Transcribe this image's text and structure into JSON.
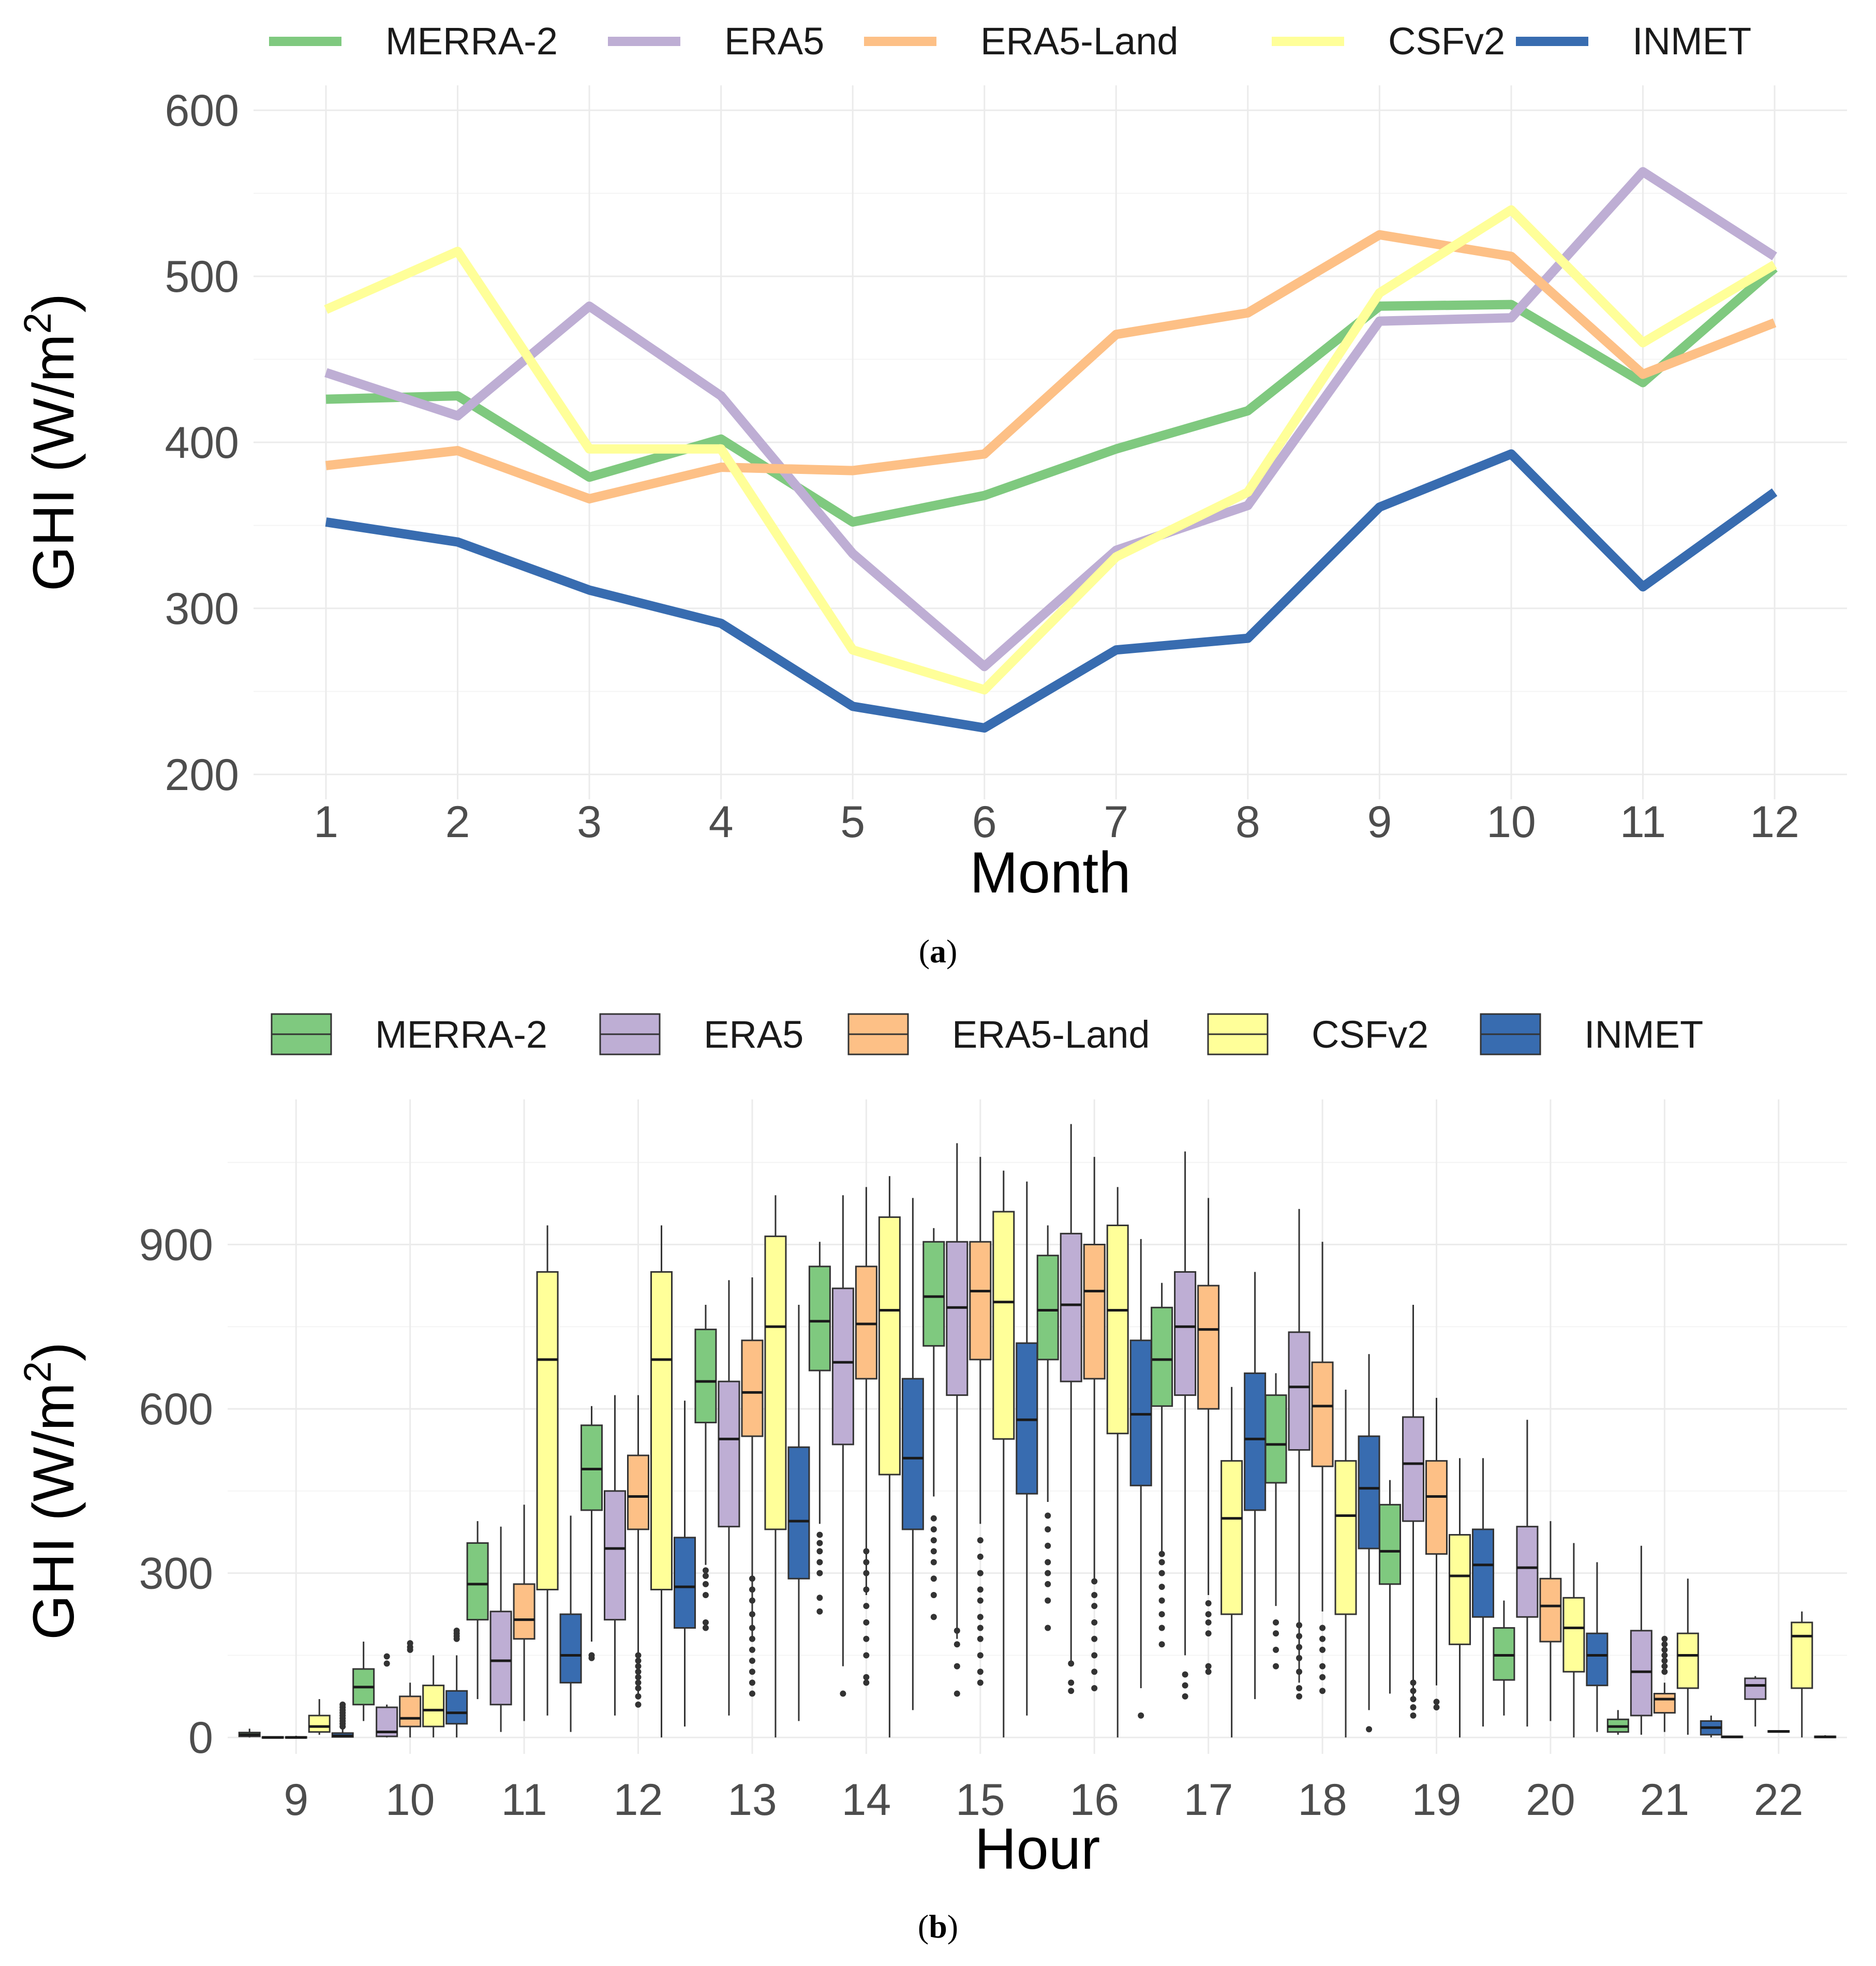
{
  "chart_data": [
    {
      "type": "line",
      "panel": "a",
      "caption_letter": "a",
      "xlabel": "Month",
      "ylabel": "GHI (W/m",
      "ylabel_sup": "2",
      "ylabel_close": ")",
      "x": [
        1,
        2,
        3,
        4,
        5,
        6,
        7,
        8,
        9,
        10,
        11,
        12
      ],
      "xticks": [
        "1",
        "2",
        "3",
        "4",
        "5",
        "6",
        "7",
        "8",
        "9",
        "10",
        "11",
        "12"
      ],
      "ylim": [
        185,
        615
      ],
      "yticks": [
        200,
        300,
        400,
        500,
        600
      ],
      "grid": true,
      "legend_position": "top",
      "series": [
        {
          "name": "MERRA-2",
          "color": "#7fc97f",
          "values": [
            426,
            428,
            379,
            402,
            352,
            368,
            396,
            419,
            482,
            483,
            436,
            505
          ]
        },
        {
          "name": "ERA5",
          "color": "#beaed4",
          "values": [
            442,
            416,
            482,
            428,
            333,
            265,
            335,
            362,
            473,
            475,
            563,
            512
          ]
        },
        {
          "name": "ERA5-Land",
          "color": "#fdc086",
          "values": [
            386,
            395,
            366,
            385,
            383,
            393,
            465,
            478,
            525,
            512,
            441,
            472
          ]
        },
        {
          "name": "CSFv2",
          "color": "#ffff99",
          "values": [
            480,
            515,
            396,
            396,
            275,
            251,
            331,
            370,
            490,
            540,
            460,
            507
          ]
        },
        {
          "name": "INMET",
          "color": "#386cb0",
          "values": [
            352,
            340,
            311,
            291,
            241,
            228,
            275,
            282,
            361,
            393,
            313,
            370
          ]
        }
      ]
    },
    {
      "type": "box",
      "panel": "b",
      "caption_letter": "b",
      "xlabel": "Hour",
      "ylabel": "GHI (W/m",
      "ylabel_sup": "2",
      "ylabel_close": ")",
      "categories": [
        "9",
        "10",
        "11",
        "12",
        "13",
        "14",
        "15",
        "16",
        "17",
        "18",
        "19",
        "20",
        "21",
        "22"
      ],
      "ylim": [
        -30,
        1165
      ],
      "yticks": [
        0,
        300,
        600,
        900
      ],
      "grid": true,
      "legend_position": "top",
      "series": [
        {
          "name": "MERRA-2",
          "color": "#7fc97f",
          "boxes": [
            {
              "lo": 0,
              "q1": 2,
              "med": 5,
              "q3": 9,
              "hi": 16,
              "out": []
            },
            {
              "lo": 30,
              "q1": 60,
              "med": 92,
              "q3": 125,
              "hi": 175,
              "out": []
            },
            {
              "lo": 70,
              "q1": 215,
              "med": 280,
              "q3": 355,
              "hi": 395,
              "out": []
            },
            {
              "lo": 175,
              "q1": 415,
              "med": 490,
              "q3": 570,
              "hi": 605,
              "out": [
                145,
                150
              ]
            },
            {
              "lo": 315,
              "q1": 575,
              "med": 650,
              "q3": 745,
              "hi": 790,
              "out": [
                200,
                210,
                260,
                280,
                295,
                305
              ]
            },
            {
              "lo": 390,
              "q1": 670,
              "med": 760,
              "q3": 860,
              "hi": 905,
              "out": [
                230,
                255,
                300,
                320,
                340,
                355,
                370
              ]
            },
            {
              "lo": 440,
              "q1": 715,
              "med": 805,
              "q3": 905,
              "hi": 930,
              "out": [
                220,
                260,
                290,
                320,
                340,
                360,
                380,
                400
              ]
            },
            {
              "lo": 430,
              "q1": 690,
              "med": 780,
              "q3": 880,
              "hi": 935,
              "out": [
                200,
                250,
                280,
                300,
                320,
                350,
                380,
                405
              ]
            },
            {
              "lo": 340,
              "q1": 605,
              "med": 690,
              "q3": 785,
              "hi": 830,
              "out": [
                170,
                200,
                225,
                250,
                275,
                300,
                320,
                335
              ]
            },
            {
              "lo": 240,
              "q1": 465,
              "med": 535,
              "q3": 625,
              "hi": 665,
              "out": [
                130,
                160,
                190,
                210
              ]
            },
            {
              "lo": 80,
              "q1": 280,
              "med": 340,
              "q3": 425,
              "hi": 470,
              "out": []
            },
            {
              "lo": 40,
              "q1": 105,
              "med": 150,
              "q3": 200,
              "hi": 250,
              "out": []
            },
            {
              "lo": 5,
              "q1": 10,
              "med": 20,
              "q3": 33,
              "hi": 50,
              "out": []
            },
            {
              "lo": 0,
              "q1": 0,
              "med": 1,
              "q3": 2,
              "hi": 3,
              "out": []
            }
          ]
        },
        {
          "name": "ERA5",
          "color": "#beaed4",
          "boxes": [
            {
              "lo": 0,
              "q1": 0,
              "med": 0,
              "q3": 1,
              "hi": 2,
              "out": []
            },
            {
              "lo": 0,
              "q1": 2,
              "med": 10,
              "q3": 55,
              "hi": 60,
              "out": [
                135,
                148
              ]
            },
            {
              "lo": 10,
              "q1": 60,
              "med": 140,
              "q3": 230,
              "hi": 385,
              "out": []
            },
            {
              "lo": 40,
              "q1": 215,
              "med": 345,
              "q3": 450,
              "hi": 625,
              "out": []
            },
            {
              "lo": 40,
              "q1": 385,
              "med": 545,
              "q3": 650,
              "hi": 835,
              "out": []
            },
            {
              "lo": 130,
              "q1": 535,
              "med": 685,
              "q3": 820,
              "hi": 990,
              "out": [
                80
              ]
            },
            {
              "lo": 180,
              "q1": 625,
              "med": 785,
              "q3": 905,
              "hi": 1085,
              "out": [
                80,
                130,
                170,
                195
              ]
            },
            {
              "lo": 140,
              "q1": 650,
              "med": 790,
              "q3": 920,
              "hi": 1120,
              "out": [
                85,
                100,
                135
              ]
            },
            {
              "lo": 150,
              "q1": 625,
              "med": 750,
              "q3": 850,
              "hi": 1070,
              "out": [
                75,
                95,
                115
              ]
            },
            {
              "lo": 100,
              "q1": 525,
              "med": 640,
              "q3": 740,
              "hi": 965,
              "out": [
                75,
                90,
                120,
                145,
                165,
                185,
                205
              ]
            },
            {
              "lo": 70,
              "q1": 395,
              "med": 500,
              "q3": 585,
              "hi": 790,
              "out": [
                40,
                55,
                70,
                85,
                100
              ]
            },
            {
              "lo": 20,
              "q1": 220,
              "med": 310,
              "q3": 385,
              "hi": 580,
              "out": []
            },
            {
              "lo": 5,
              "q1": 40,
              "med": 120,
              "q3": 195,
              "hi": 350,
              "out": []
            },
            {
              "lo": 20,
              "q1": 70,
              "med": 95,
              "q3": 108,
              "hi": 112,
              "out": []
            }
          ]
        },
        {
          "name": "ERA5-Land",
          "color": "#fdc086",
          "boxes": [
            {
              "lo": 0,
              "q1": 0,
              "med": 0,
              "q3": 1,
              "hi": 3,
              "out": []
            },
            {
              "lo": 0,
              "q1": 20,
              "med": 35,
              "q3": 75,
              "hi": 100,
              "out": [
                160,
                165,
                172
              ]
            },
            {
              "lo": 30,
              "q1": 180,
              "med": 215,
              "q3": 280,
              "hi": 425,
              "out": []
            },
            {
              "lo": 80,
              "q1": 380,
              "med": 440,
              "q3": 515,
              "hi": 625,
              "out": [
                60,
                75,
                90,
                100,
                110,
                120,
                130,
                140,
                150
              ]
            },
            {
              "lo": 180,
              "q1": 550,
              "med": 630,
              "q3": 725,
              "hi": 840,
              "out": [
                80,
                100,
                120,
                140,
                160,
                180,
                200,
                225,
                250,
                270,
                290
              ]
            },
            {
              "lo": 260,
              "q1": 655,
              "med": 755,
              "q3": 860,
              "hi": 1005,
              "out": [
                100,
                110,
                150,
                180,
                210,
                240,
                270,
                300,
                320,
                340
              ]
            },
            {
              "lo": 390,
              "q1": 690,
              "med": 815,
              "q3": 905,
              "hi": 1060,
              "out": [
                100,
                120,
                150,
                180,
                200,
                220,
                250,
                270,
                300,
                330,
                360
              ]
            },
            {
              "lo": 290,
              "q1": 655,
              "med": 815,
              "q3": 900,
              "hi": 1060,
              "out": [
                90,
                120,
                150,
                180,
                210,
                240,
                260,
                285
              ]
            },
            {
              "lo": 260,
              "q1": 600,
              "med": 745,
              "q3": 825,
              "hi": 985,
              "out": [
                120,
                130,
                190,
                210,
                225,
                245
              ]
            },
            {
              "lo": 230,
              "q1": 495,
              "med": 605,
              "q3": 685,
              "hi": 905,
              "out": [
                85,
                110,
                130,
                160,
                180,
                200
              ]
            },
            {
              "lo": 95,
              "q1": 335,
              "med": 440,
              "q3": 505,
              "hi": 620,
              "out": [
                55,
                65
              ]
            },
            {
              "lo": 30,
              "q1": 175,
              "med": 240,
              "q3": 290,
              "hi": 395,
              "out": []
            },
            {
              "lo": 10,
              "q1": 45,
              "med": 70,
              "q3": 80,
              "hi": 100,
              "out": [
                120,
                130,
                140,
                150,
                160,
                170,
                180
              ]
            },
            {
              "lo": 10,
              "q1": 10,
              "med": 11,
              "q3": 12,
              "hi": 12,
              "out": []
            }
          ]
        },
        {
          "name": "CSFv2",
          "color": "#ffff99",
          "boxes": [
            {
              "lo": 5,
              "q1": 10,
              "med": 20,
              "q3": 40,
              "hi": 70,
              "out": []
            },
            {
              "lo": 0,
              "q1": 20,
              "med": 50,
              "q3": 95,
              "hi": 150,
              "out": []
            },
            {
              "lo": 40,
              "q1": 270,
              "med": 690,
              "q3": 850,
              "hi": 935,
              "out": []
            },
            {
              "lo": 0,
              "q1": 270,
              "med": 690,
              "q3": 850,
              "hi": 935,
              "out": []
            },
            {
              "lo": 0,
              "q1": 380,
              "med": 750,
              "q3": 915,
              "hi": 990,
              "out": []
            },
            {
              "lo": 0,
              "q1": 480,
              "med": 780,
              "q3": 950,
              "hi": 1025,
              "out": []
            },
            {
              "lo": 0,
              "q1": 545,
              "med": 795,
              "q3": 960,
              "hi": 1035,
              "out": []
            },
            {
              "lo": 0,
              "q1": 555,
              "med": 780,
              "q3": 935,
              "hi": 1005,
              "out": []
            },
            {
              "lo": 0,
              "q1": 225,
              "med": 400,
              "q3": 505,
              "hi": 640,
              "out": []
            },
            {
              "lo": 0,
              "q1": 225,
              "med": 405,
              "q3": 505,
              "hi": 635,
              "out": []
            },
            {
              "lo": 0,
              "q1": 170,
              "med": 295,
              "q3": 370,
              "hi": 510,
              "out": []
            },
            {
              "lo": 0,
              "q1": 120,
              "med": 200,
              "q3": 255,
              "hi": 355,
              "out": []
            },
            {
              "lo": 5,
              "q1": 90,
              "med": 150,
              "q3": 190,
              "hi": 290,
              "out": []
            },
            {
              "lo": 0,
              "q1": 90,
              "med": 185,
              "q3": 210,
              "hi": 230,
              "out": []
            }
          ]
        },
        {
          "name": "INMET",
          "color": "#386cb0",
          "boxes": [
            {
              "lo": 0,
              "q1": 1,
              "med": 3,
              "q3": 8,
              "hi": 15,
              "out": [
                20,
                25,
                30,
                35,
                40,
                45,
                50,
                55,
                60
              ]
            },
            {
              "lo": 0,
              "q1": 25,
              "med": 45,
              "q3": 85,
              "hi": 150,
              "out": [
                180,
                185,
                190,
                195
              ]
            },
            {
              "lo": 10,
              "q1": 100,
              "med": 150,
              "q3": 225,
              "hi": 405,
              "out": []
            },
            {
              "lo": 20,
              "q1": 200,
              "med": 275,
              "q3": 365,
              "hi": 615,
              "out": []
            },
            {
              "lo": 30,
              "q1": 290,
              "med": 395,
              "q3": 530,
              "hi": 790,
              "out": []
            },
            {
              "lo": 50,
              "q1": 380,
              "med": 510,
              "q3": 655,
              "hi": 985,
              "out": []
            },
            {
              "lo": 40,
              "q1": 445,
              "med": 580,
              "q3": 720,
              "hi": 1015,
              "out": []
            },
            {
              "lo": 90,
              "q1": 460,
              "med": 590,
              "q3": 725,
              "hi": 910,
              "out": [
                40
              ]
            },
            {
              "lo": 70,
              "q1": 415,
              "med": 545,
              "q3": 665,
              "hi": 850,
              "out": []
            },
            {
              "lo": 50,
              "q1": 345,
              "med": 455,
              "q3": 550,
              "hi": 700,
              "out": [
                15
              ]
            },
            {
              "lo": 20,
              "q1": 220,
              "med": 315,
              "q3": 380,
              "hi": 510,
              "out": []
            },
            {
              "lo": 10,
              "q1": 95,
              "med": 150,
              "q3": 190,
              "hi": 320,
              "out": []
            },
            {
              "lo": 0,
              "q1": 5,
              "med": 18,
              "q3": 30,
              "hi": 40,
              "out": []
            },
            {
              "lo": 0,
              "q1": 0,
              "med": 1,
              "q3": 2,
              "hi": 4,
              "out": []
            }
          ]
        }
      ]
    }
  ]
}
